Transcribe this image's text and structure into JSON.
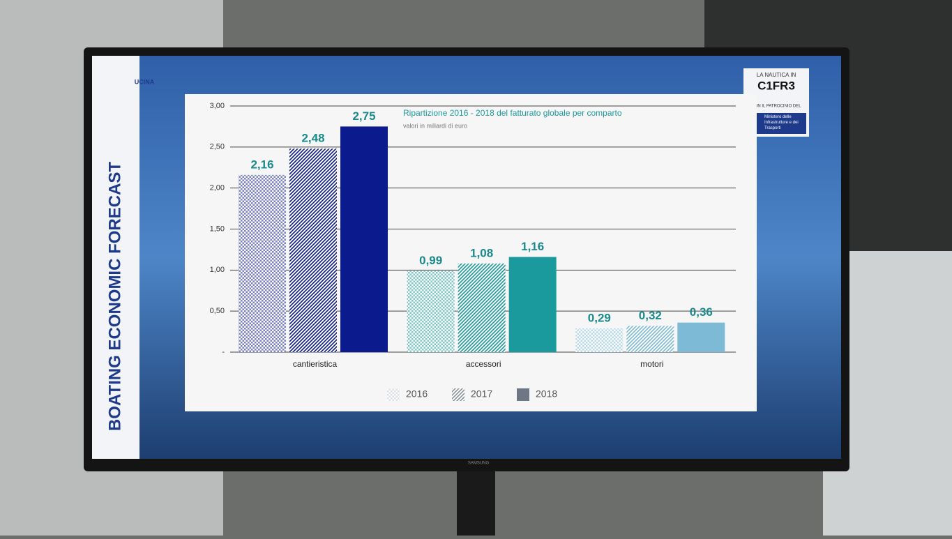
{
  "slide": {
    "side_title": "BOATING ECONOMIC FORECAST",
    "logo_left": "UCINA",
    "logo_right_top": "LA NAUTICA IN",
    "logo_right_main": "C1FR3",
    "patronage": "CON IL PATROCINIO DEL",
    "ministry": "Ministero delle Infrastrutture e dei Trasporti",
    "brand": "SAMSUNG"
  },
  "chart_data": {
    "type": "bar",
    "title": "Ripartizione 2016 - 2018 del fatturato globale per comparto",
    "subtitle": "valori in miliardi di euro",
    "categories": [
      "cantieristica",
      "accessori",
      "motori"
    ],
    "category_colors": [
      "#0b1a8c",
      "#1a9a9c",
      "#7cbad6"
    ],
    "series": [
      {
        "name": "2016",
        "color": "#b8c2cc",
        "values": [
          2.16,
          0.99,
          0.29
        ],
        "value_labels": [
          "2,16",
          "0,99",
          "0,29"
        ]
      },
      {
        "name": "2017",
        "color": "#8a929a",
        "values": [
          2.48,
          1.08,
          0.32
        ],
        "value_labels": [
          "2,48",
          "1,08",
          "0,32"
        ]
      },
      {
        "name": "2018",
        "color": "#6e7884",
        "values": [
          2.75,
          1.16,
          0.36
        ],
        "value_labels": [
          "2,75",
          "1,16",
          "0,36"
        ]
      }
    ],
    "ylim": [
      0,
      3
    ],
    "yticks": [
      {
        "value": 0,
        "label": "-"
      },
      {
        "value": 0.5,
        "label": "0,50"
      },
      {
        "value": 1,
        "label": "1,00"
      },
      {
        "value": 1.5,
        "label": "1,50"
      },
      {
        "value": 2,
        "label": "2,00"
      },
      {
        "value": 2.5,
        "label": "2,50"
      },
      {
        "value": 3,
        "label": "3,00"
      }
    ],
    "grid": true,
    "legend": "bottom"
  }
}
